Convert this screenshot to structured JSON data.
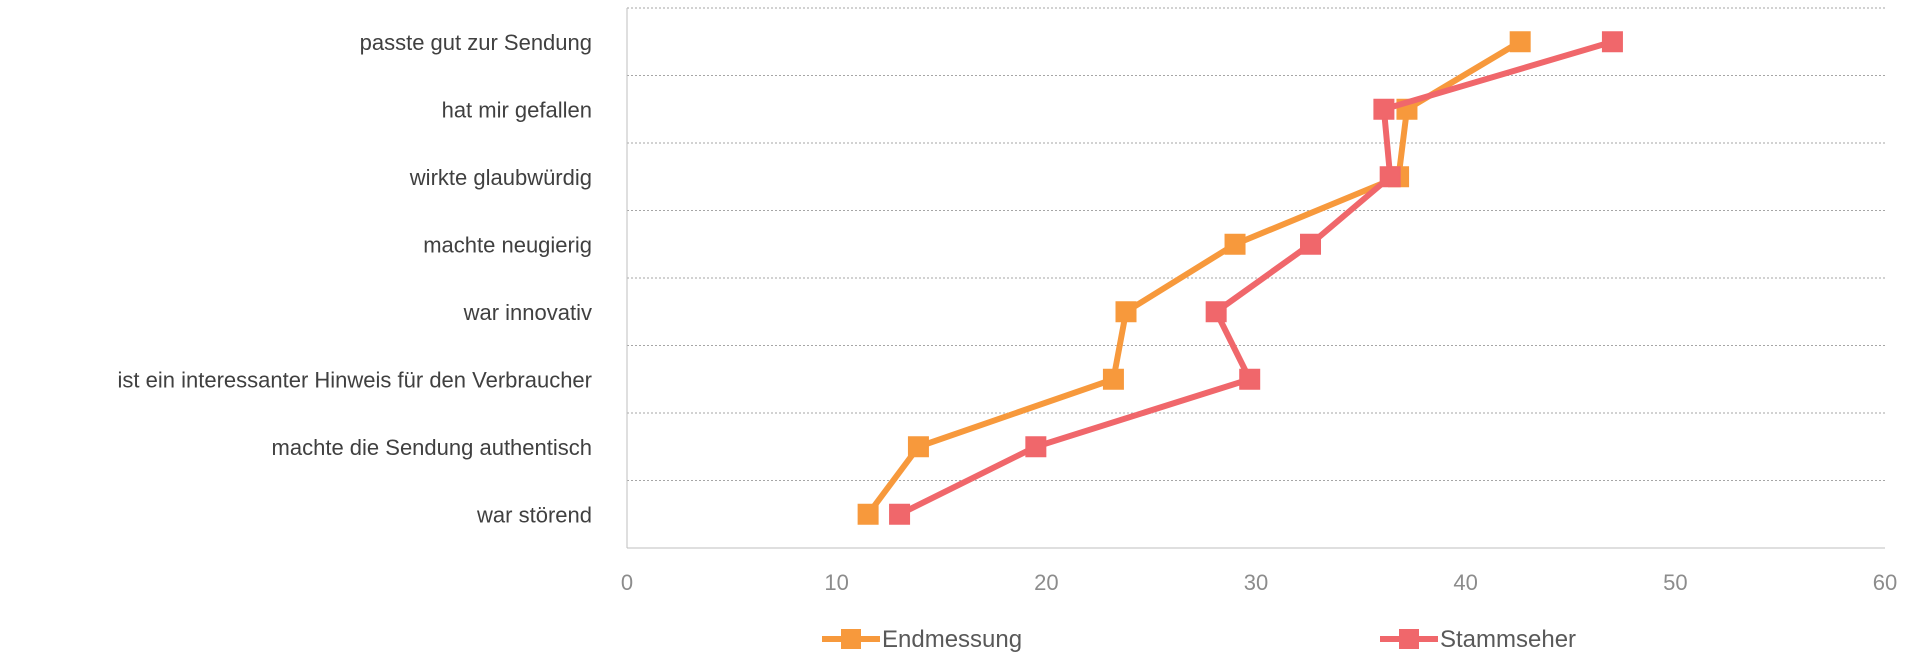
{
  "chart_data": {
    "type": "line",
    "orientation": "horizontal",
    "categories": [
      "passte gut zur Sendung",
      "hat mir gefallen",
      "wirkte glaubwürdig",
      "machte neugierig",
      "war innovativ",
      "ist ein interessanter Hinweis für den Verbraucher",
      "machte die Sendung authentisch",
      "war störend"
    ],
    "series": [
      {
        "name": "Endmessung",
        "color": "#f7993c",
        "values": [
          42.6,
          37.2,
          36.8,
          29.0,
          23.8,
          23.2,
          13.9,
          11.5
        ]
      },
      {
        "name": "Stammseher",
        "color": "#f0676b",
        "values": [
          47.0,
          36.1,
          36.4,
          32.6,
          28.1,
          29.7,
          19.5,
          13.0
        ]
      }
    ],
    "xlim": [
      0,
      60
    ],
    "xticks": [
      "0",
      "10",
      "20",
      "30",
      "40",
      "50",
      "60"
    ],
    "grid": true,
    "legend_position": "bottom",
    "marker": "square"
  }
}
